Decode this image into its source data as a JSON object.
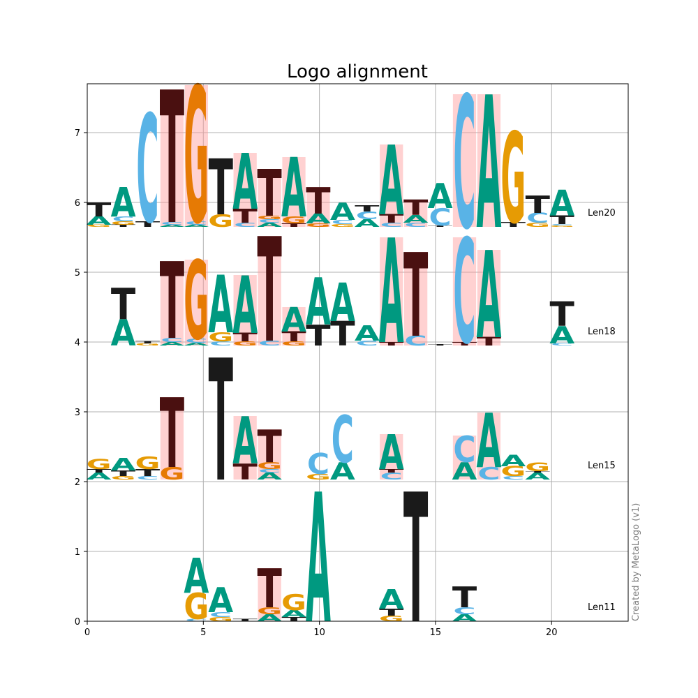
{
  "chart_data": {
    "type": "sequence-logo",
    "title": "Logo alignment",
    "xlim": [
      0,
      23.3
    ],
    "ylim": [
      0,
      7.7
    ],
    "xticks": [
      0,
      5,
      10,
      15,
      20
    ],
    "yticks": [
      0,
      1,
      2,
      3,
      4,
      5,
      6,
      7
    ],
    "grid": true,
    "watermark": "Created by MetaLogo (v1)",
    "colors": {
      "A": "#009980",
      "C": "#59b3e6",
      "G": "#e69b04",
      "T": "#1a1a1a",
      "highlight": "#ff9999",
      "dark_T": "#4a1010",
      "G_orange": "#e67a04"
    },
    "rows": [
      {
        "name": "Len20",
        "base": 5.65,
        "columns": [
          {
            "x": 0.5,
            "letters": [
              [
                "G",
                0.03
              ],
              [
                "A",
                0.12
              ],
              [
                "T",
                0.2
              ]
            ]
          },
          {
            "x": 1.55,
            "letters": [
              [
                "T",
                0.03
              ],
              [
                "G",
                0.05
              ],
              [
                "C",
                0.07
              ],
              [
                "A",
                0.42
              ]
            ]
          },
          {
            "x": 2.6,
            "letters": [
              [
                "T",
                0.08
              ],
              [
                "C",
                1.55
              ]
            ]
          },
          {
            "x": 3.65,
            "highlight": true,
            "letters": [
              [
                "A",
                0.03
              ],
              [
                "C",
                0.04
              ],
              [
                "T",
                1.9
              ]
            ]
          },
          {
            "x": 4.7,
            "highlight": true,
            "letters": [
              [
                "A",
                0.03
              ],
              [
                "C",
                0.05
              ],
              [
                "G",
                1.95
              ]
            ]
          },
          {
            "x": 5.75,
            "letters": [
              [
                "G",
                0.18
              ],
              [
                "T",
                0.8
              ]
            ]
          },
          {
            "x": 6.8,
            "highlight": true,
            "letters": [
              [
                "C",
                0.06
              ],
              [
                "T",
                0.2
              ],
              [
                "A",
                0.8
              ]
            ]
          },
          {
            "x": 7.85,
            "highlight": true,
            "letters": [
              [
                "A",
                0.06
              ],
              [
                "C",
                0.05
              ],
              [
                "G",
                0.05
              ],
              [
                "T",
                0.67
              ]
            ]
          },
          {
            "x": 8.9,
            "highlight": true,
            "letters": [
              [
                "T",
                0.05
              ],
              [
                "G",
                0.1
              ],
              [
                "A",
                0.85
              ]
            ]
          },
          {
            "x": 9.95,
            "highlight": true,
            "letters": [
              [
                "G",
                0.05
              ],
              [
                "A",
                0.14
              ],
              [
                "T",
                0.38
              ]
            ]
          },
          {
            "x": 11.0,
            "letters": [
              [
                "G",
                0.04
              ],
              [
                "C",
                0.06
              ],
              [
                "A",
                0.25
              ]
            ]
          },
          {
            "x": 12.05,
            "letters": [
              [
                "A",
                0.11
              ],
              [
                "C",
                0.11
              ],
              [
                "T",
                0.09
              ]
            ]
          },
          {
            "x": 13.1,
            "highlight": true,
            "letters": [
              [
                "C",
                0.06
              ],
              [
                "T",
                0.12
              ],
              [
                "A",
                1.0
              ]
            ]
          },
          {
            "x": 14.15,
            "highlight": true,
            "letters": [
              [
                "C",
                0.06
              ],
              [
                "A",
                0.11
              ],
              [
                "T",
                0.22
              ]
            ]
          },
          {
            "x": 15.2,
            "letters": [
              [
                "T",
                0.02
              ],
              [
                "C",
                0.25
              ],
              [
                "A",
                0.36
              ]
            ]
          },
          {
            "x": 16.25,
            "highlight": true,
            "letters": [
              [
                "C",
                1.9
              ]
            ]
          },
          {
            "x": 17.3,
            "highlight": true,
            "letters": [
              [
                "A",
                1.9
              ]
            ]
          },
          {
            "x": 18.35,
            "letters": [
              [
                "T",
                0.07
              ],
              [
                "G",
                1.3
              ]
            ]
          },
          {
            "x": 19.4,
            "letters": [
              [
                "G",
                0.06
              ],
              [
                "C",
                0.14
              ],
              [
                "T",
                0.25
              ]
            ]
          },
          {
            "x": 20.45,
            "letters": [
              [
                "G",
                0.02
              ],
              [
                "C",
                0.02
              ],
              [
                "T",
                0.12
              ],
              [
                "A",
                0.37
              ]
            ]
          }
        ]
      },
      {
        "name": "Len18",
        "base": 3.95,
        "columns": [
          {
            "x": 1.55,
            "letters": [
              [
                "A",
                0.38
              ],
              [
                "T",
                0.45
              ]
            ]
          },
          {
            "x": 2.6,
            "letters": [
              [
                "G",
                0.03
              ],
              [
                "T",
                0.03
              ]
            ]
          },
          {
            "x": 3.65,
            "highlight": true,
            "letters": [
              [
                "A",
                0.05
              ],
              [
                "C",
                0.06
              ],
              [
                "T",
                1.1
              ]
            ]
          },
          {
            "x": 4.7,
            "highlight": true,
            "letters": [
              [
                "A",
                0.04
              ],
              [
                "C",
                0.06
              ],
              [
                "G",
                1.13
              ]
            ]
          },
          {
            "x": 5.75,
            "letters": [
              [
                "C",
                0.06
              ],
              [
                "G",
                0.13
              ],
              [
                "A",
                0.83
              ]
            ]
          },
          {
            "x": 6.8,
            "highlight": true,
            "letters": [
              [
                "G",
                0.06
              ],
              [
                "T",
                0.12
              ],
              [
                "A",
                0.83
              ]
            ]
          },
          {
            "x": 7.85,
            "highlight": true,
            "letters": [
              [
                "C",
                0.07
              ],
              [
                "T",
                1.5
              ]
            ]
          },
          {
            "x": 8.9,
            "highlight": true,
            "letters": [
              [
                "G",
                0.06
              ],
              [
                "T",
                0.14
              ],
              [
                "A",
                0.35
              ]
            ]
          },
          {
            "x": 9.95,
            "letters": [
              [
                "T",
                0.3
              ],
              [
                "A",
                0.68
              ]
            ]
          },
          {
            "x": 11.0,
            "letters": [
              [
                "T",
                0.35
              ],
              [
                "A",
                0.55
              ]
            ]
          },
          {
            "x": 12.05,
            "letters": [
              [
                "C",
                0.07
              ],
              [
                "A",
                0.22
              ]
            ]
          },
          {
            "x": 13.1,
            "highlight": true,
            "letters": [
              [
                "T",
                0.05
              ],
              [
                "A",
                1.5
              ]
            ]
          },
          {
            "x": 14.15,
            "highlight": true,
            "letters": [
              [
                "C",
                0.14
              ],
              [
                "T",
                1.2
              ]
            ]
          },
          {
            "x": 15.2,
            "letters": [
              [
                "T",
                0.02
              ]
            ]
          },
          {
            "x": 16.25,
            "highlight": true,
            "letters": [
              [
                "T",
                0.05
              ],
              [
                "C",
                1.5
              ]
            ]
          },
          {
            "x": 17.3,
            "highlight": true,
            "letters": [
              [
                "T",
                0.12
              ],
              [
                "A",
                1.25
              ]
            ]
          },
          {
            "x": 20.45,
            "letters": [
              [
                "C",
                0.03
              ],
              [
                "A",
                0.25
              ],
              [
                "T",
                0.35
              ]
            ]
          }
        ]
      },
      {
        "name": "Len15",
        "base": 2.03,
        "columns": [
          {
            "x": 0.5,
            "letters": [
              [
                "A",
                0.1
              ],
              [
                "T",
                0.05
              ],
              [
                "G",
                0.14
              ]
            ]
          },
          {
            "x": 1.55,
            "letters": [
              [
                "G",
                0.05
              ],
              [
                "T",
                0.08
              ],
              [
                "A",
                0.18
              ]
            ]
          },
          {
            "x": 2.6,
            "letters": [
              [
                "C",
                0.05
              ],
              [
                "T",
                0.1
              ],
              [
                "G",
                0.18
              ]
            ]
          },
          {
            "x": 3.65,
            "highlight": true,
            "letters": [
              [
                "G",
                0.18
              ],
              [
                "T",
                1.0
              ]
            ]
          },
          {
            "x": 5.75,
            "letters": [
              [
                "T",
                1.75
              ]
            ]
          },
          {
            "x": 6.8,
            "highlight": true,
            "letters": [
              [
                "T",
                0.23
              ],
              [
                "A",
                0.68
              ]
            ]
          },
          {
            "x": 7.85,
            "highlight": true,
            "letters": [
              [
                "A",
                0.1
              ],
              [
                "C",
                0.05
              ],
              [
                "G",
                0.1
              ],
              [
                "T",
                0.47
              ]
            ]
          },
          {
            "x": 9.95,
            "letters": [
              [
                "G",
                0.08
              ],
              [
                "C",
                0.3
              ]
            ]
          },
          {
            "x": 11.0,
            "letters": [
              [
                "A",
                0.25
              ],
              [
                "C",
                0.68
              ]
            ]
          },
          {
            "x": 13.1,
            "highlight": true,
            "letters": [
              [
                "C",
                0.1
              ],
              [
                "T",
                0.05
              ],
              [
                "A",
                0.5
              ]
            ]
          },
          {
            "x": 16.25,
            "highlight": true,
            "letters": [
              [
                "A",
                0.25
              ],
              [
                "C",
                0.38
              ]
            ]
          },
          {
            "x": 17.3,
            "highlight": true,
            "letters": [
              [
                "C",
                0.18
              ],
              [
                "A",
                0.78
              ]
            ]
          },
          {
            "x": 18.35,
            "letters": [
              [
                "C",
                0.05
              ],
              [
                "G",
                0.14
              ],
              [
                "A",
                0.16
              ]
            ]
          },
          {
            "x": 19.4,
            "letters": [
              [
                "A",
                0.1
              ],
              [
                "T",
                0.02
              ],
              [
                "G",
                0.12
              ]
            ]
          }
        ]
      },
      {
        "name": "Len11",
        "base": 0.0,
        "columns": [
          {
            "x": 4.7,
            "letters": [
              [
                "C",
                0.03
              ],
              [
                "G",
                0.38
              ],
              [
                "A",
                0.5
              ]
            ]
          },
          {
            "x": 5.75,
            "letters": [
              [
                "G",
                0.06
              ],
              [
                "C",
                0.07
              ],
              [
                "A",
                0.36
              ]
            ]
          },
          {
            "x": 6.8,
            "letters": [
              [
                "T",
                0.03
              ]
            ]
          },
          {
            "x": 7.85,
            "highlight": true,
            "letters": [
              [
                "A",
                0.1
              ],
              [
                "G",
                0.1
              ],
              [
                "T",
                0.56
              ]
            ]
          },
          {
            "x": 8.9,
            "letters": [
              [
                "T",
                0.06
              ],
              [
                "A",
                0.1
              ],
              [
                "G",
                0.23
              ]
            ]
          },
          {
            "x": 9.95,
            "letters": [
              [
                "A",
                1.86
              ]
            ]
          },
          {
            "x": 13.1,
            "letters": [
              [
                "G",
                0.08
              ],
              [
                "T",
                0.1
              ],
              [
                "A",
                0.28
              ]
            ]
          },
          {
            "x": 14.15,
            "letters": [
              [
                "T",
                1.86
              ]
            ]
          },
          {
            "x": 16.25,
            "letters": [
              [
                "A",
                0.1
              ],
              [
                "C",
                0.1
              ],
              [
                "T",
                0.3
              ]
            ]
          }
        ]
      }
    ]
  }
}
